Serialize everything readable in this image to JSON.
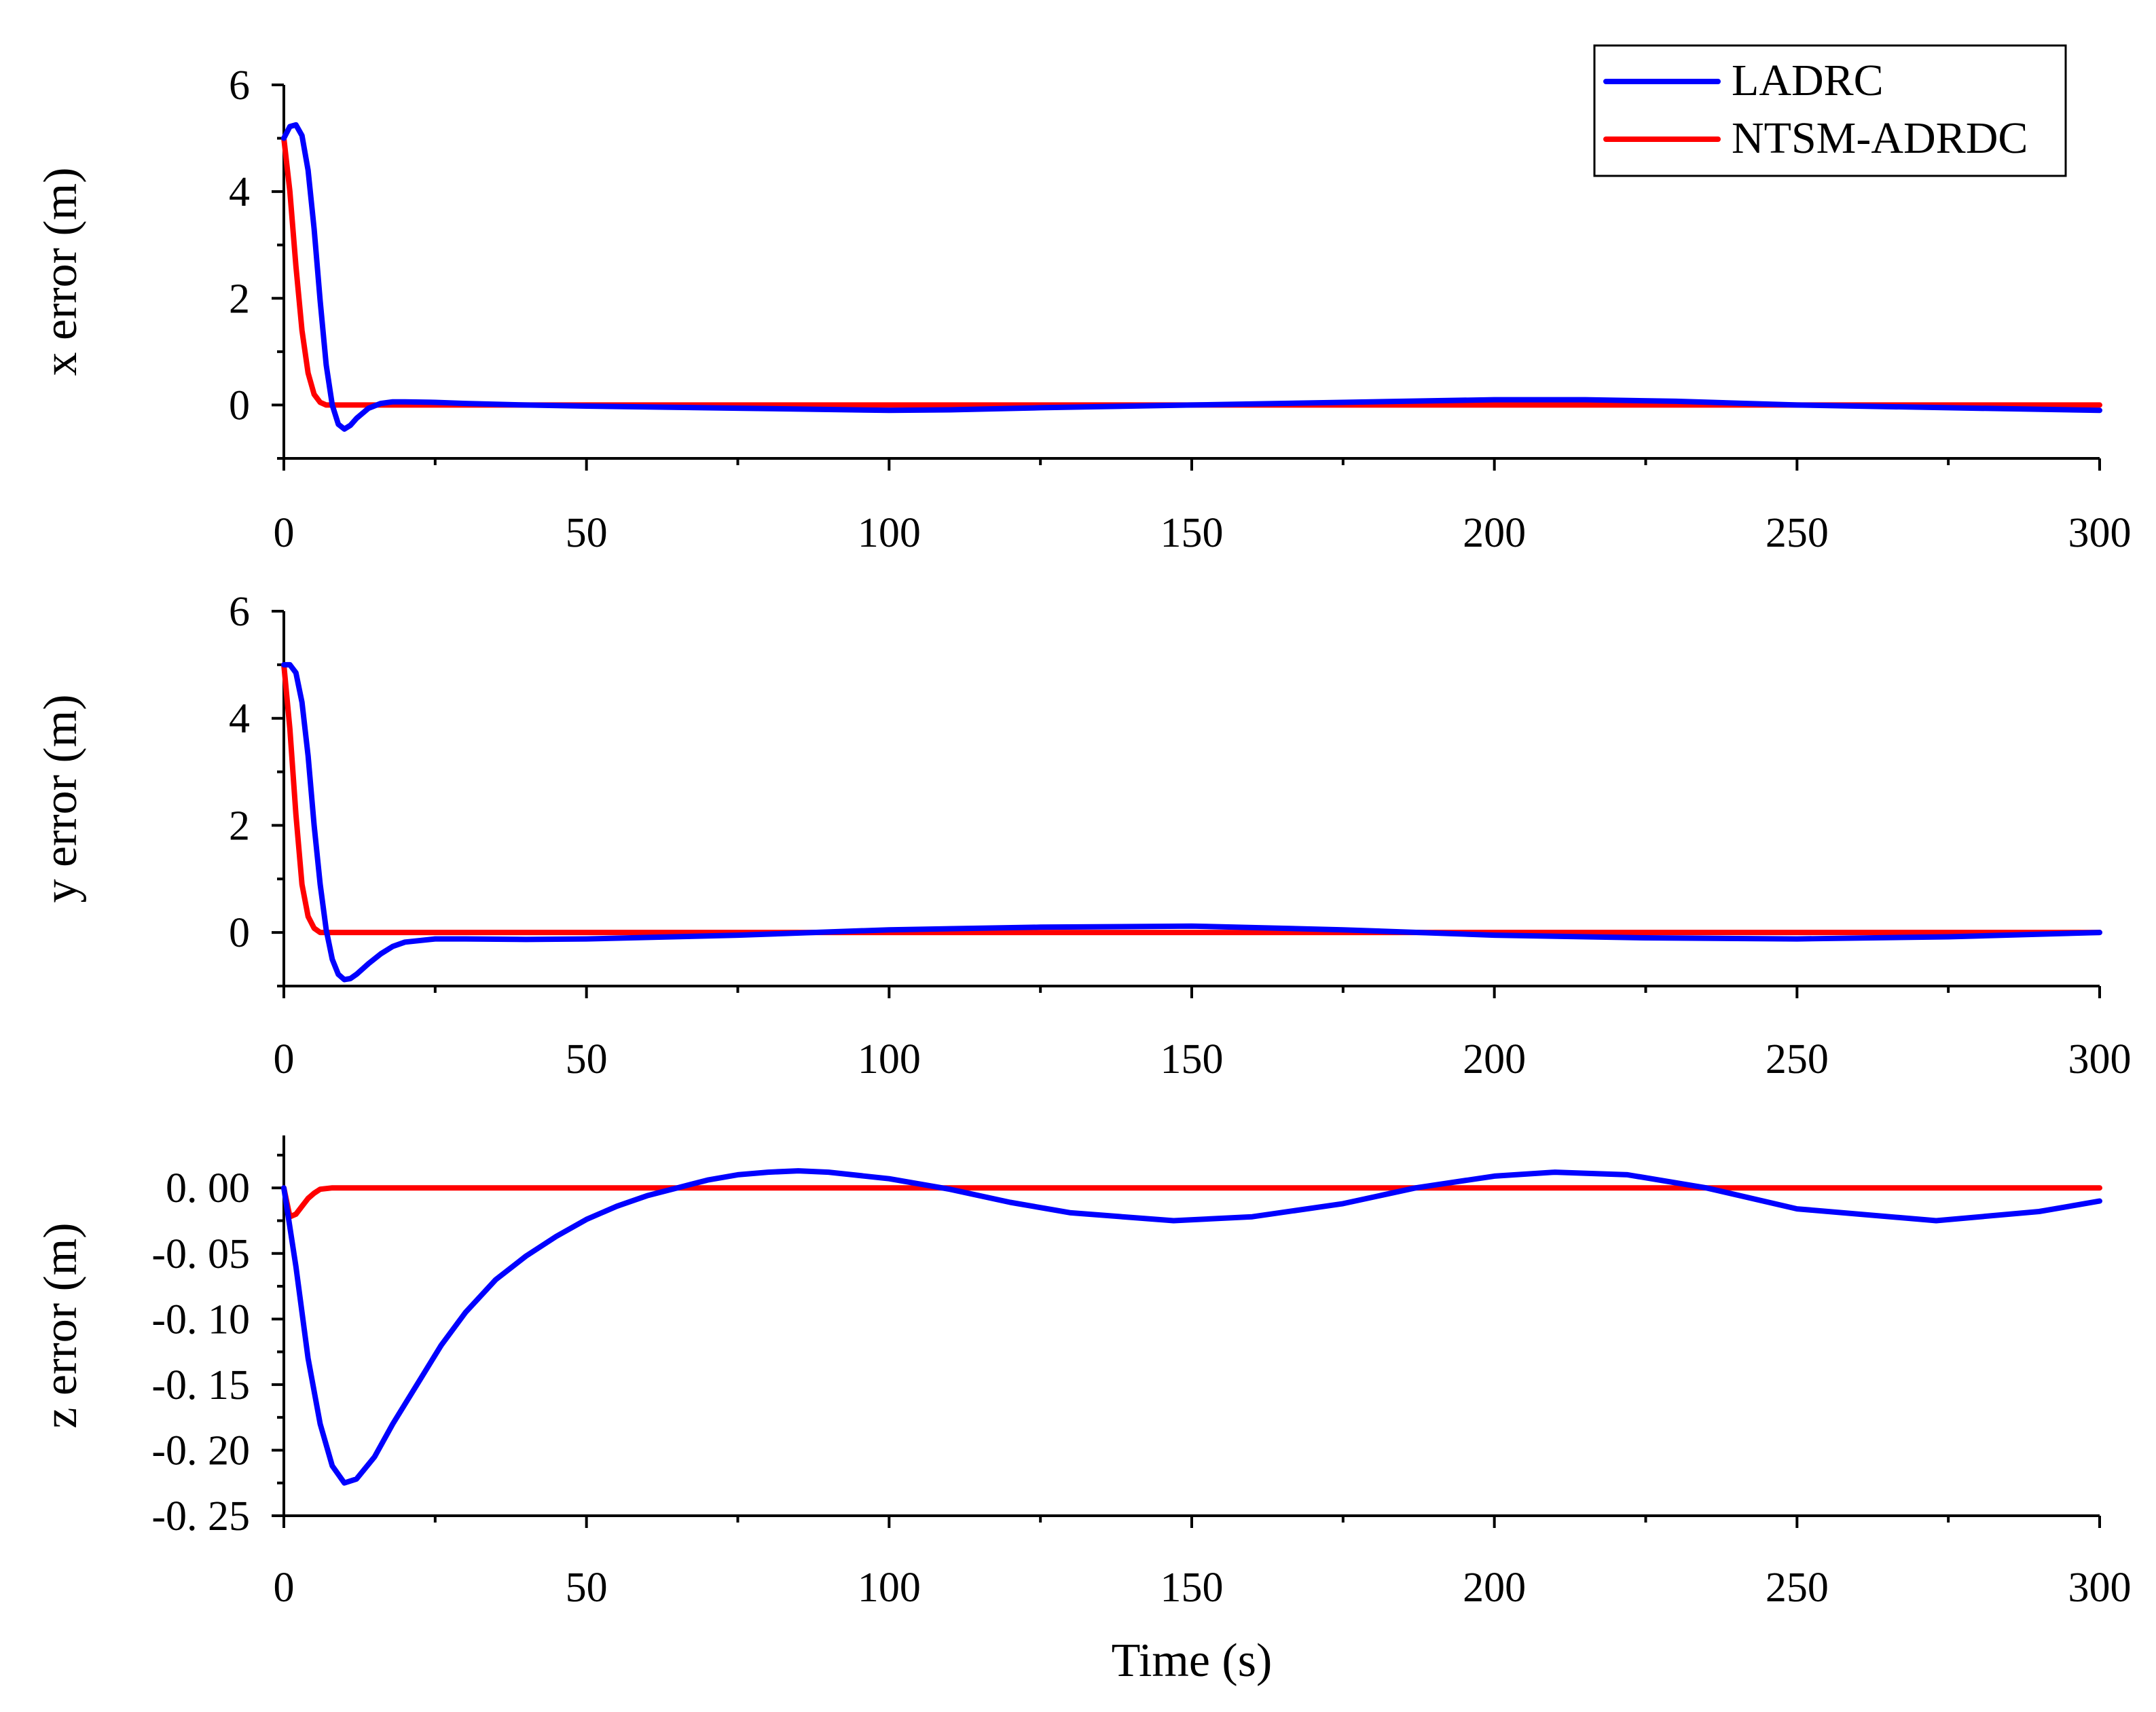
{
  "figure": {
    "xlabel": "Time (s)",
    "legend": {
      "placement": "top-right",
      "entries": [
        {
          "name": "LADRC",
          "color": "#0000ff"
        },
        {
          "name": "NTSM-ADRDC",
          "color": "#ff0000"
        }
      ]
    }
  },
  "chart_data": [
    {
      "type": "line",
      "id": "x",
      "title": "",
      "xlabel": "",
      "ylabel": "x error (m)",
      "xlim": [
        0,
        300
      ],
      "ylim": [
        -1,
        6
      ],
      "xticks": [
        0,
        50,
        100,
        150,
        200,
        250,
        300
      ],
      "xtick_labels": [
        "0",
        "50",
        "100",
        "150",
        "200",
        "250",
        "300"
      ],
      "yticks": [
        0,
        2,
        4,
        6
      ],
      "ytick_labels": [
        "0",
        "2",
        "4",
        "6"
      ],
      "grid": false,
      "series": [
        {
          "name": "LADRC",
          "color": "#0000ff",
          "x": [
            0,
            1,
            2,
            3,
            4,
            5,
            6,
            7,
            8,
            9,
            10,
            11,
            12,
            14,
            16,
            18,
            20,
            25,
            30,
            40,
            50,
            75,
            100,
            110,
            125,
            150,
            175,
            200,
            215,
            230,
            250,
            275,
            300
          ],
          "y": [
            5.0,
            5.22,
            5.25,
            5.05,
            4.4,
            3.3,
            1.95,
            0.75,
            0.0,
            -0.36,
            -0.45,
            -0.38,
            -0.25,
            -0.06,
            0.03,
            0.06,
            0.06,
            0.05,
            0.03,
            0.0,
            -0.02,
            -0.06,
            -0.1,
            -0.09,
            -0.05,
            0.0,
            0.05,
            0.1,
            0.1,
            0.07,
            0.0,
            -0.05,
            -0.1
          ]
        },
        {
          "name": "NTSM-ADRDC",
          "color": "#ff0000",
          "x": [
            0,
            1,
            2,
            3,
            4,
            5,
            6,
            7,
            8,
            10,
            300
          ],
          "y": [
            5.0,
            4.0,
            2.6,
            1.4,
            0.6,
            0.2,
            0.05,
            0.0,
            0.0,
            0.0,
            0.0
          ]
        }
      ]
    },
    {
      "type": "line",
      "id": "y",
      "title": "",
      "xlabel": "",
      "ylabel": "y error (m)",
      "xlim": [
        0,
        300
      ],
      "ylim": [
        -1,
        6
      ],
      "xticks": [
        0,
        50,
        100,
        150,
        200,
        250,
        300
      ],
      "xtick_labels": [
        "0",
        "50",
        "100",
        "150",
        "200",
        "250",
        "300"
      ],
      "yticks": [
        0,
        2,
        4,
        6
      ],
      "ytick_labels": [
        "0",
        "2",
        "4",
        "6"
      ],
      "grid": false,
      "series": [
        {
          "name": "LADRC",
          "color": "#0000ff",
          "x": [
            0,
            1,
            2,
            3,
            4,
            5,
            6,
            7,
            8,
            9,
            10,
            11,
            12,
            14,
            16,
            18,
            20,
            25,
            30,
            40,
            50,
            75,
            100,
            125,
            150,
            175,
            200,
            225,
            250,
            275,
            300
          ],
          "y": [
            5.0,
            5.0,
            4.85,
            4.3,
            3.3,
            2.0,
            0.9,
            0.05,
            -0.5,
            -0.78,
            -0.88,
            -0.86,
            -0.78,
            -0.58,
            -0.4,
            -0.26,
            -0.18,
            -0.12,
            -0.12,
            -0.13,
            -0.12,
            -0.05,
            0.05,
            0.1,
            0.12,
            0.05,
            -0.05,
            -0.1,
            -0.12,
            -0.08,
            0.0
          ]
        },
        {
          "name": "NTSM-ADRDC",
          "color": "#ff0000",
          "x": [
            0,
            1,
            2,
            3,
            4,
            5,
            6,
            7,
            8,
            300
          ],
          "y": [
            5.0,
            3.8,
            2.2,
            0.9,
            0.3,
            0.08,
            0.0,
            0.0,
            0.0,
            0.0
          ]
        }
      ]
    },
    {
      "type": "line",
      "id": "z",
      "title": "",
      "xlabel": "Time (s)",
      "ylabel": "z error (m)",
      "xlim": [
        0,
        300
      ],
      "ylim": [
        -0.25,
        0.04
      ],
      "xticks": [
        0,
        50,
        100,
        150,
        200,
        250,
        300
      ],
      "xtick_labels": [
        "0",
        "50",
        "100",
        "150",
        "200",
        "250",
        "300"
      ],
      "yticks": [
        0.0,
        -0.05,
        -0.1,
        -0.15,
        -0.2,
        -0.25
      ],
      "ytick_labels": [
        "0. 00",
        "-0. 05",
        "-0. 10",
        "-0. 15",
        "-0. 20",
        "-0. 25"
      ],
      "grid": false,
      "series": [
        {
          "name": "LADRC",
          "color": "#0000ff",
          "x": [
            0,
            2,
            4,
            6,
            8,
            10,
            12,
            15,
            18,
            22,
            26,
            30,
            35,
            40,
            45,
            50,
            55,
            60,
            65,
            70,
            75,
            80,
            85,
            90,
            100,
            110,
            120,
            130,
            147,
            160,
            175,
            187,
            200,
            210,
            222,
            235,
            250,
            273,
            290,
            300
          ],
          "y": [
            0.0,
            -0.06,
            -0.13,
            -0.18,
            -0.212,
            -0.225,
            -0.222,
            -0.205,
            -0.18,
            -0.15,
            -0.12,
            -0.095,
            -0.07,
            -0.052,
            -0.037,
            -0.024,
            -0.014,
            -0.006,
            0.0,
            0.006,
            0.01,
            0.012,
            0.013,
            0.012,
            0.007,
            -0.001,
            -0.011,
            -0.019,
            -0.025,
            -0.022,
            -0.012,
            0.0,
            0.009,
            0.012,
            0.01,
            0.0,
            -0.016,
            -0.025,
            -0.018,
            -0.01
          ]
        },
        {
          "name": "NTSM-ADRDC",
          "color": "#ff0000",
          "x": [
            0,
            1,
            2,
            3,
            4,
            5,
            6,
            8,
            10,
            300
          ],
          "y": [
            0.0,
            -0.022,
            -0.02,
            -0.014,
            -0.008,
            -0.004,
            -0.001,
            0.0,
            0.0,
            0.0
          ]
        }
      ]
    }
  ]
}
